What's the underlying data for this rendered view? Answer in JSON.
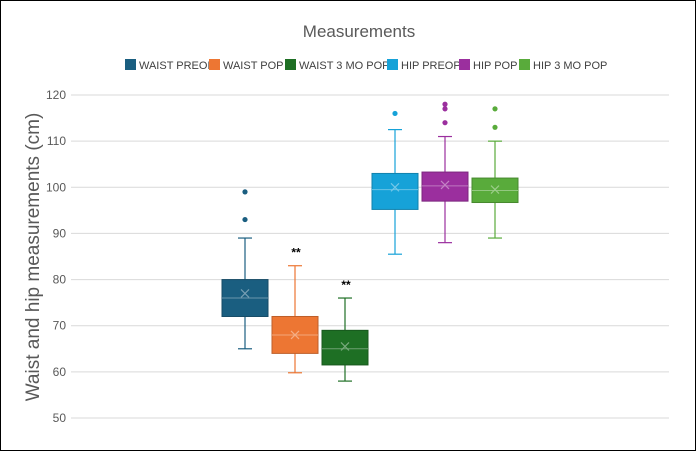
{
  "chart_data": {
    "type": "box",
    "title": "Measurements",
    "xlabel": "",
    "ylabel": "Waist and hip measurements (cm)",
    "ylim": [
      50,
      120
    ],
    "yticks": [
      50,
      60,
      70,
      80,
      90,
      100,
      110,
      120
    ],
    "grid": true,
    "legend_position": "top",
    "series": [
      {
        "name": "WAIST PREOP",
        "color": "#1a5e80",
        "whisker_low": 65,
        "q1": 72,
        "median": 76,
        "mean": 77,
        "q3": 80,
        "whisker_high": 89,
        "outliers": [
          93,
          99
        ],
        "annotation": ""
      },
      {
        "name": "WAIST POP",
        "color": "#ed7633",
        "whisker_low": 59.8,
        "q1": 64,
        "median": 68,
        "mean": 68,
        "q3": 72,
        "whisker_high": 83,
        "outliers": [],
        "annotation": "**"
      },
      {
        "name": "WAIST 3 MO POP",
        "color": "#1e6f24",
        "whisker_low": 58,
        "q1": 61.5,
        "median": 65,
        "mean": 65.5,
        "q3": 69,
        "whisker_high": 76,
        "outliers": [],
        "annotation": "**"
      },
      {
        "name": "HIP PREOP",
        "color": "#16a2d8",
        "whisker_low": 85.5,
        "q1": 95.2,
        "median": 99.5,
        "mean": 100,
        "q3": 103,
        "whisker_high": 112.5,
        "outliers": [
          116
        ],
        "annotation": ""
      },
      {
        "name": "HIP POP",
        "color": "#9b2f9e",
        "whisker_low": 88,
        "q1": 97,
        "median": 100.3,
        "mean": 100.5,
        "q3": 103.3,
        "whisker_high": 111,
        "outliers": [
          114,
          117,
          118
        ],
        "annotation": ""
      },
      {
        "name": "HIP 3 MO POP",
        "color": "#59ab3b",
        "whisker_low": 89,
        "q1": 96.7,
        "median": 99.3,
        "mean": 99.5,
        "q3": 102,
        "whisker_high": 110,
        "outliers": [
          113,
          117
        ],
        "annotation": ""
      }
    ]
  }
}
